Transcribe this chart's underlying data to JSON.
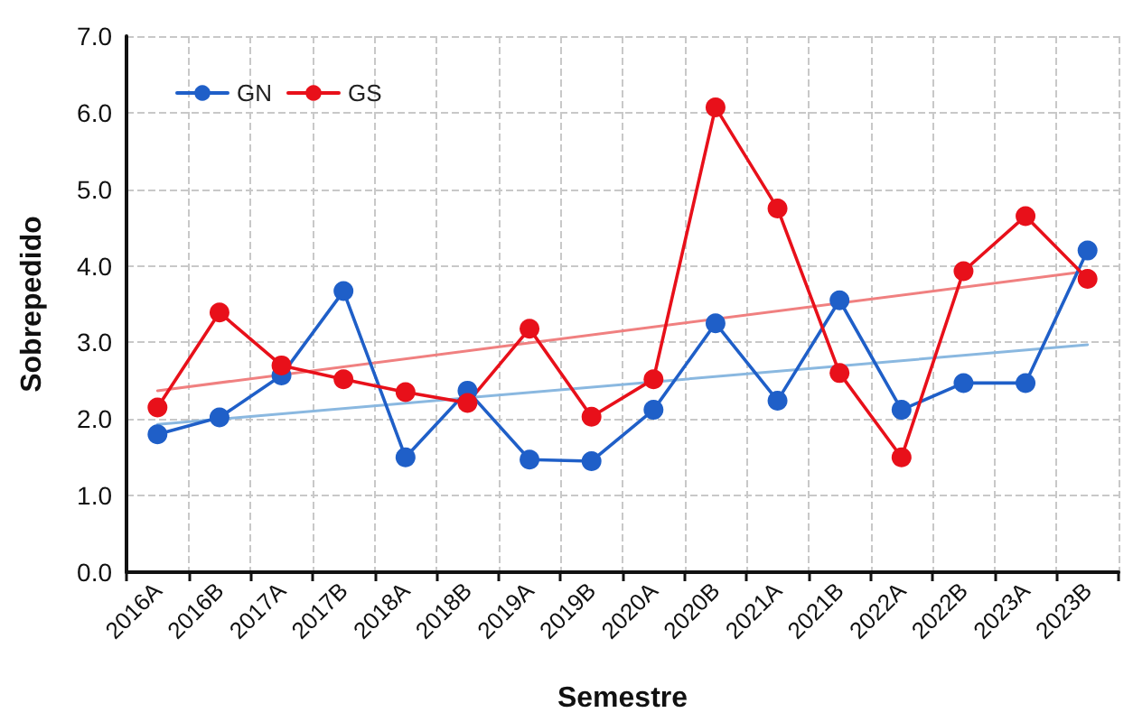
{
  "chart_data": {
    "type": "line",
    "xlabel": "Semestre",
    "ylabel": "Sobrepedido",
    "categories": [
      "2016A",
      "2016B",
      "2017A",
      "2017B",
      "2018A",
      "2018B",
      "2019A",
      "2019B",
      "2020A",
      "2020B",
      "2021A",
      "2021B",
      "2022A",
      "2022B",
      "2023A",
      "2023B"
    ],
    "series": [
      {
        "name": "GN",
        "color": "#1f5fc8",
        "values": [
          1.8,
          2.02,
          2.57,
          3.67,
          1.5,
          2.37,
          1.47,
          1.45,
          2.12,
          3.25,
          2.24,
          3.55,
          2.12,
          2.47,
          2.47,
          4.2
        ]
      },
      {
        "name": "GS",
        "color": "#e8101a",
        "values": [
          2.15,
          3.39,
          2.7,
          2.52,
          2.35,
          2.21,
          3.18,
          2.03,
          2.52,
          6.07,
          4.75,
          2.6,
          1.5,
          3.93,
          4.65,
          3.83
        ]
      },
      {
        "color": "#8ab8e0",
        "marker": "none",
        "values": [
          1.93,
          null,
          null,
          null,
          null,
          null,
          null,
          null,
          null,
          null,
          null,
          null,
          null,
          null,
          null,
          2.97
        ]
      },
      {
        "color": "#f08080",
        "marker": "none",
        "values": [
          2.37,
          null,
          null,
          null,
          null,
          null,
          null,
          null,
          null,
          null,
          null,
          null,
          null,
          null,
          null,
          3.93
        ]
      }
    ],
    "ylim": [
      0,
      7
    ],
    "yticks": [
      {
        "value": 0,
        "label": "0.0"
      },
      {
        "value": 1,
        "label": "1.0"
      },
      {
        "value": 2,
        "label": "2.0"
      },
      {
        "value": 3,
        "label": "3.0"
      },
      {
        "value": 4,
        "label": "4.0"
      },
      {
        "value": 5,
        "label": "5.0"
      },
      {
        "value": 6,
        "label": "6.0"
      },
      {
        "value": 7,
        "label": "7.0"
      }
    ],
    "grid": true,
    "legend": "top left",
    "marker": "circle",
    "line_style": "solid"
  }
}
